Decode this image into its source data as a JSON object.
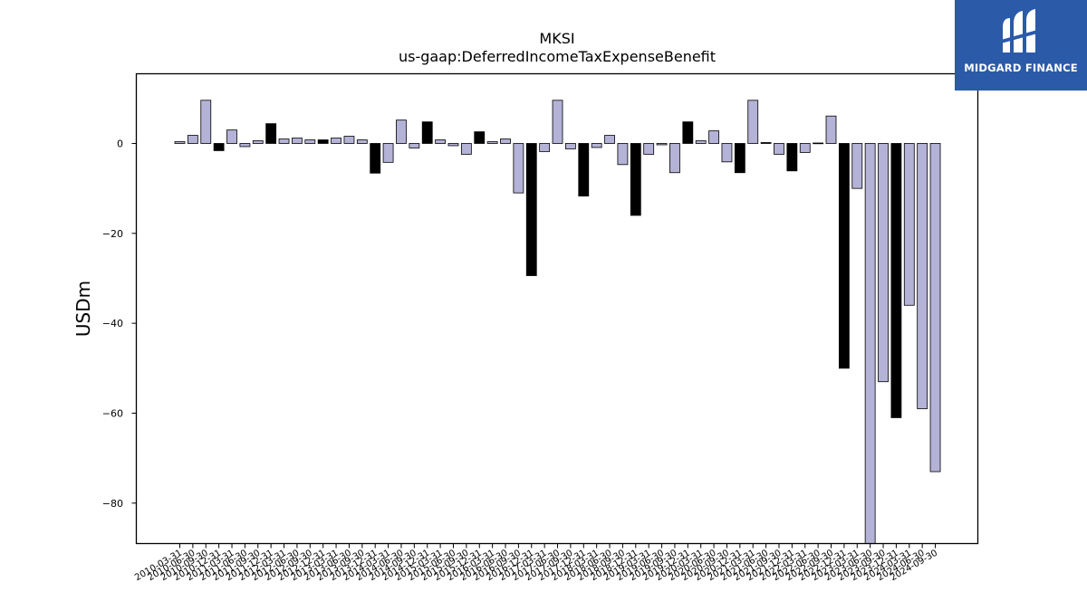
{
  "logo": {
    "text": "MIDGARD FINANCE"
  },
  "colors": {
    "light": "#b4b2d6",
    "dark": "#000000",
    "logo_bg": "#2b5aa8"
  },
  "chart_data": {
    "type": "bar",
    "title": "MKSI",
    "subtitle": "us-gaap:DeferredIncomeTaxExpenseBenefit",
    "xlabel": "",
    "ylabel": "USDm",
    "ylim": [
      -89,
      15.5
    ],
    "yticks": [
      0,
      -20,
      -40,
      -60,
      -80
    ],
    "grid": false,
    "categories": [
      "2010-03-31",
      "2010-06-30",
      "2010-09-30",
      "2010-12-31",
      "2011-03-31",
      "2011-06-30",
      "2011-09-30",
      "2011-12-31",
      "2012-03-31",
      "2012-06-30",
      "2012-09-30",
      "2012-12-31",
      "2013-03-31",
      "2013-06-30",
      "2013-09-30",
      "2013-12-31",
      "2014-03-31",
      "2014-06-30",
      "2014-09-30",
      "2014-12-31",
      "2015-03-31",
      "2015-06-30",
      "2015-09-30",
      "2015-12-31",
      "2016-03-31",
      "2016-06-30",
      "2016-09-30",
      "2016-12-31",
      "2017-03-31",
      "2017-06-30",
      "2017-09-30",
      "2017-12-31",
      "2018-03-31",
      "2018-06-30",
      "2018-09-30",
      "2018-12-31",
      "2019-03-31",
      "2019-06-30",
      "2019-09-30",
      "2019-12-31",
      "2020-03-31",
      "2020-06-30",
      "2020-09-30",
      "2020-12-31",
      "2021-03-31",
      "2021-06-30",
      "2021-09-30",
      "2021-12-31",
      "2022-03-31",
      "2022-06-30",
      "2022-09-30",
      "2022-12-31",
      "2023-03-31",
      "2023-06-30",
      "2023-09-30",
      "2023-12-31",
      "2024-03-31",
      "2024-06-30",
      "2024-09-30"
    ],
    "values": [
      0.4,
      1.8,
      9.6,
      -1.6,
      3.0,
      -0.7,
      0.6,
      4.4,
      1.0,
      1.2,
      0.8,
      0.8,
      1.2,
      1.6,
      0.8,
      -6.6,
      -4.2,
      5.2,
      -1.0,
      4.8,
      0.8,
      -0.5,
      -2.4,
      2.6,
      0.4,
      1.0,
      -11.0,
      -29.4,
      -1.8,
      9.6,
      -1.2,
      -11.7,
      -0.9,
      1.8,
      -4.7,
      -16.0,
      -2.4,
      -0.3,
      -6.5,
      4.8,
      0.6,
      2.8,
      -4.1,
      -6.5,
      9.6,
      0.2,
      -2.4,
      -6.1,
      -2.0,
      0.1,
      6.1,
      -50.0,
      -10.0,
      -89.0,
      -53.0,
      -61.0,
      -36.0,
      -59.0,
      -73.0
    ],
    "bar_colors": [
      "light",
      "light",
      "light",
      "dark",
      "light",
      "light",
      "light",
      "dark",
      "light",
      "light",
      "light",
      "dark",
      "light",
      "light",
      "light",
      "dark",
      "light",
      "light",
      "light",
      "dark",
      "light",
      "light",
      "light",
      "dark",
      "light",
      "light",
      "light",
      "dark",
      "light",
      "light",
      "light",
      "dark",
      "light",
      "light",
      "light",
      "dark",
      "light",
      "light",
      "light",
      "dark",
      "light",
      "light",
      "light",
      "dark",
      "light",
      "dark",
      "light",
      "dark",
      "light",
      "light",
      "light",
      "dark",
      "light",
      "light",
      "light",
      "dark",
      "light",
      "light",
      "light"
    ]
  }
}
